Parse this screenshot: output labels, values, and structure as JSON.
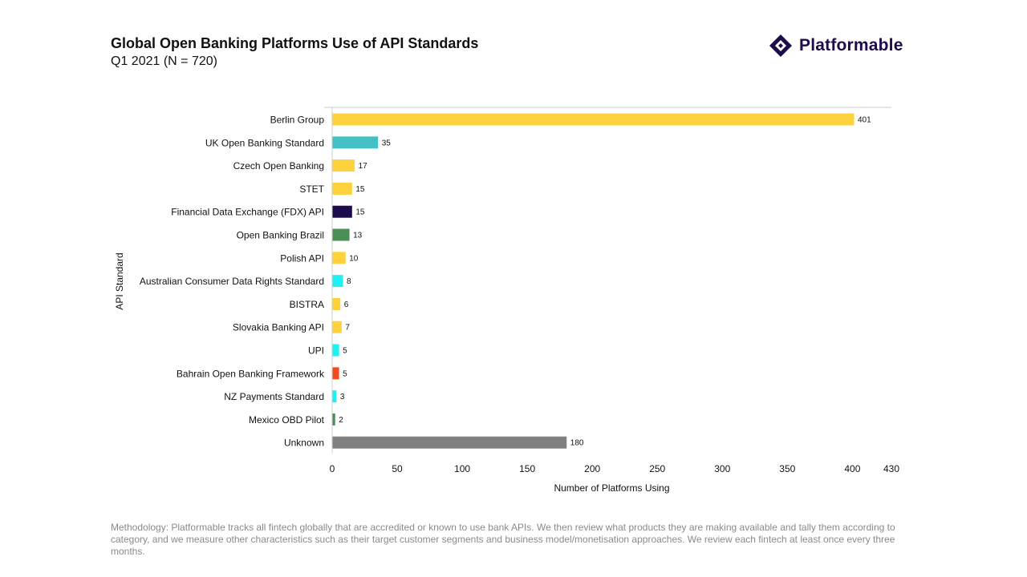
{
  "header": {
    "title": "Global Open Banking Platforms Use of API Standards",
    "subtitle": "Q1 2021 (N = 720)"
  },
  "logo": {
    "text": "Platformable",
    "color": "#1e0b4b"
  },
  "chart_data": {
    "type": "bar",
    "orientation": "horizontal",
    "xlabel": "Number of Platforms Using",
    "ylabel": "API Standard",
    "xlim": [
      0,
      430
    ],
    "xticks": [
      0,
      50,
      100,
      150,
      200,
      250,
      300,
      350,
      400,
      430
    ],
    "grid": false,
    "categories": [
      "Berlin Group",
      "UK Open Banking Standard",
      "Czech Open Banking",
      "STET",
      "Financial Data Exchange (FDX) API",
      "Open Banking Brazil",
      "Polish API",
      "Australian Consumer Data Rights Standard",
      "BISTRA",
      "Slovakia Banking API",
      "UPI",
      "Bahrain Open Banking Framework",
      "NZ Payments Standard",
      "Mexico OBD Pilot",
      "Unknown"
    ],
    "values": [
      401,
      35,
      17,
      15,
      15,
      13,
      10,
      8,
      6,
      7,
      5,
      5,
      3,
      2,
      180
    ],
    "colors": [
      "#fdd23c",
      "#45bfc6",
      "#fdd23c",
      "#fdd23c",
      "#1e0b4b",
      "#4a8f55",
      "#fdd23c",
      "#1ff0f0",
      "#fdd23c",
      "#fdd23c",
      "#1ff0f0",
      "#f14b1e",
      "#1ff0f0",
      "#4a8f55",
      "#808080"
    ]
  },
  "footer": {
    "methodology": "Methodology: Platformable tracks all fintech globally that are accredited or known to use bank APIs. We then review what products they are making available and tally them according to category, and we measure other characteristics such as their target customer segments and business model/monetisation approaches. We review each fintech at least once every three months."
  }
}
